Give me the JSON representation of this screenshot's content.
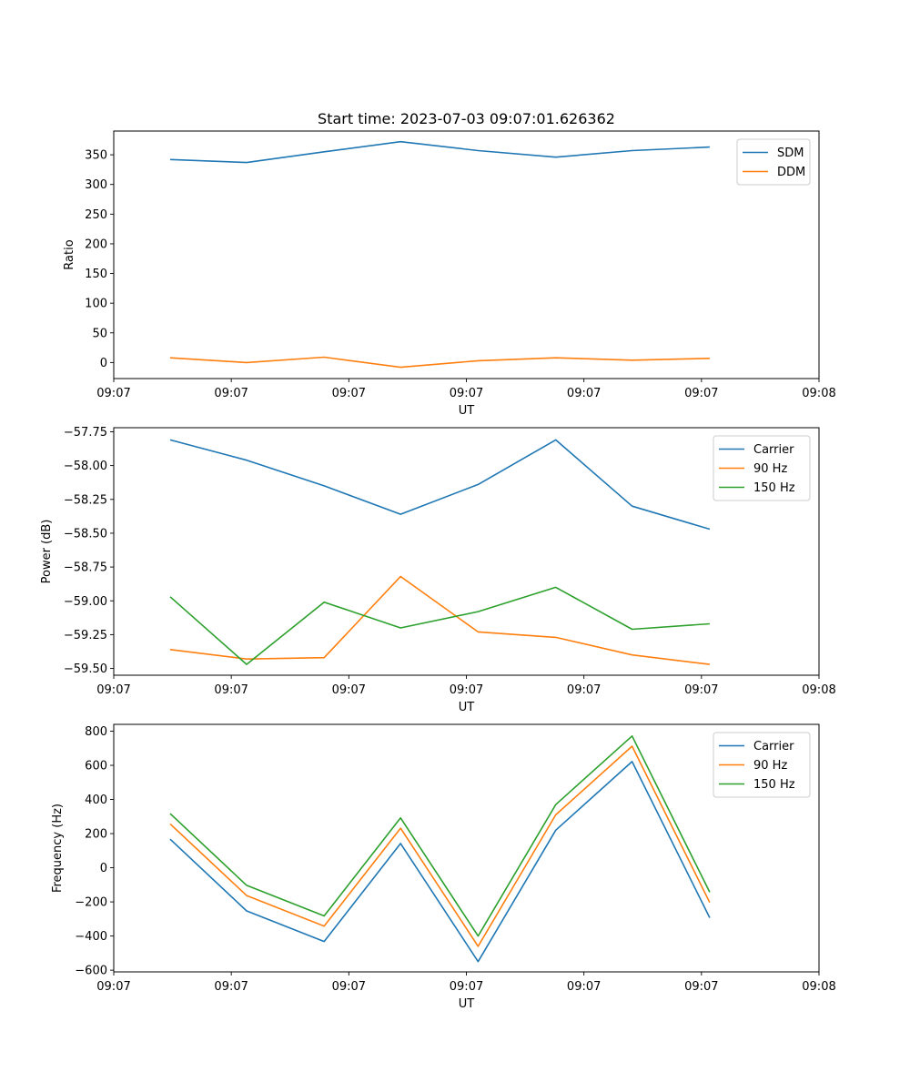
{
  "chart_data": {
    "title": "Start time: 2023-07-03 09:07:01.626362",
    "panels": [
      {
        "type": "line",
        "xlabel": "UT",
        "ylabel": "Ratio",
        "x_tick_labels": [
          "09:07",
          "09:07",
          "09:07",
          "09:07",
          "09:07",
          "09:07",
          "09:08"
        ],
        "xlim": [
          0,
          6
        ],
        "ylim": [
          -27,
          390
        ],
        "y_ticks": [
          0,
          50,
          100,
          150,
          200,
          250,
          300,
          350
        ],
        "y_tick_labels": [
          "0",
          "50",
          "100",
          "150",
          "200",
          "250",
          "300",
          "350"
        ],
        "grid": false,
        "legend": "top-right",
        "x": [
          0.48,
          1.13,
          1.79,
          2.44,
          3.1,
          3.76,
          4.41,
          5.07
        ],
        "series": [
          {
            "name": "SDM",
            "color": "#1f77b4",
            "values": [
              342,
              337,
              355,
              372,
              357,
              346,
              357,
              363
            ]
          },
          {
            "name": "DDM",
            "color": "#ff7f0e",
            "values": [
              8,
              0,
              9,
              -8,
              3,
              8,
              4,
              7
            ]
          }
        ]
      },
      {
        "type": "line",
        "xlabel": "UT",
        "ylabel": "Power (dB)",
        "x_tick_labels": [
          "09:07",
          "09:07",
          "09:07",
          "09:07",
          "09:07",
          "09:07",
          "09:08"
        ],
        "xlim": [
          0,
          6
        ],
        "ylim": [
          -59.55,
          -57.72
        ],
        "y_ticks": [
          -59.5,
          -59.25,
          -59.0,
          -58.75,
          -58.5,
          -58.25,
          -58.0,
          -57.75
        ],
        "y_tick_labels": [
          "−59.50",
          "−59.25",
          "−59.00",
          "−58.75",
          "−58.50",
          "−58.25",
          "−58.00",
          "−57.75"
        ],
        "grid": false,
        "legend": "top-right",
        "x": [
          0.48,
          1.13,
          1.79,
          2.44,
          3.1,
          3.76,
          4.41,
          5.07
        ],
        "series": [
          {
            "name": "Carrier",
            "color": "#1f77b4",
            "values": [
              -57.81,
              -57.96,
              -58.15,
              -58.36,
              -58.14,
              -57.81,
              -58.3,
              -58.47
            ]
          },
          {
            "name": "90 Hz",
            "color": "#ff7f0e",
            "values": [
              -59.36,
              -59.43,
              -59.42,
              -58.82,
              -59.23,
              -59.27,
              -59.4,
              -59.47
            ]
          },
          {
            "name": "150 Hz",
            "color": "#2ca02c",
            "values": [
              -58.97,
              -59.47,
              -59.01,
              -59.2,
              -59.08,
              -58.9,
              -59.21,
              -59.17
            ]
          }
        ]
      },
      {
        "type": "line",
        "xlabel": "UT",
        "ylabel": "Frequency (Hz)",
        "x_tick_labels": [
          "09:07",
          "09:07",
          "09:07",
          "09:07",
          "09:07",
          "09:07",
          "09:08"
        ],
        "xlim": [
          0,
          6
        ],
        "ylim": [
          -610,
          840
        ],
        "y_ticks": [
          -600,
          -400,
          -200,
          0,
          200,
          400,
          600,
          800
        ],
        "y_tick_labels": [
          "−600",
          "−400",
          "−200",
          "0",
          "200",
          "400",
          "600",
          "800"
        ],
        "grid": false,
        "legend": "top-right",
        "x": [
          0.48,
          1.13,
          1.79,
          2.44,
          3.1,
          3.76,
          4.41,
          5.07
        ],
        "series": [
          {
            "name": "Carrier",
            "color": "#1f77b4",
            "values": [
              167,
              -253,
              -432,
              142,
              -550,
              220,
              622,
              -293
            ]
          },
          {
            "name": "90 Hz",
            "color": "#ff7f0e",
            "values": [
              257,
              -163,
              -342,
              232,
              -460,
              310,
              712,
              -203
            ]
          },
          {
            "name": "150 Hz",
            "color": "#2ca02c",
            "values": [
              317,
              -103,
              -282,
              292,
              -400,
              370,
              772,
              -143
            ]
          }
        ]
      }
    ]
  }
}
